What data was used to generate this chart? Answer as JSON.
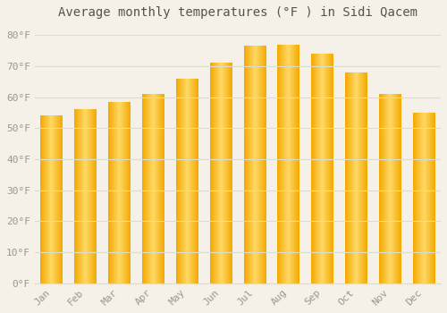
{
  "title": "Average monthly temperatures (°F ) in Sidi Qacem",
  "months": [
    "Jan",
    "Feb",
    "Mar",
    "Apr",
    "May",
    "Jun",
    "Jul",
    "Aug",
    "Sep",
    "Oct",
    "Nov",
    "Dec"
  ],
  "values": [
    54,
    56,
    58.5,
    61,
    66,
    71,
    76.5,
    77,
    74,
    68,
    61,
    55
  ],
  "bar_color_center": "#FFD966",
  "bar_color_edge": "#F4A800",
  "background_color": "#F5F0E8",
  "grid_color": "#DDDDCC",
  "ylim": [
    0,
    83
  ],
  "yticks": [
    0,
    10,
    20,
    30,
    40,
    50,
    60,
    70,
    80
  ],
  "ytick_labels": [
    "0°F",
    "10°F",
    "20°F",
    "30°F",
    "40°F",
    "50°F",
    "60°F",
    "70°F",
    "80°F"
  ],
  "title_fontsize": 10,
  "tick_fontsize": 8,
  "tick_color": "#999988",
  "title_color": "#555544"
}
